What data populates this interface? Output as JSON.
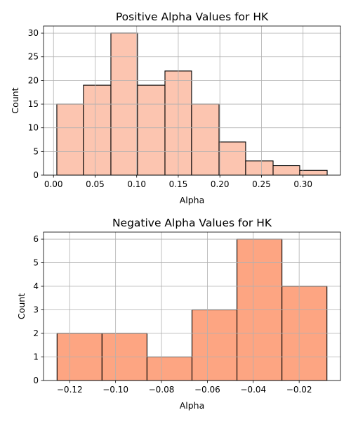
{
  "chart_data": [
    {
      "type": "bar",
      "subtype": "histogram",
      "title": "Positive Alpha Values for HK",
      "xlabel": "Alpha",
      "ylabel": "Count",
      "bin_edges": [
        0.004,
        0.036,
        0.069,
        0.101,
        0.134,
        0.166,
        0.199,
        0.231,
        0.264,
        0.296,
        0.329
      ],
      "values": [
        15,
        19,
        30,
        19,
        22,
        15,
        7,
        3,
        2,
        1
      ],
      "xlim": [
        -0.012,
        0.345
      ],
      "ylim": [
        0,
        31.5
      ],
      "xticks": [
        0.0,
        0.05,
        0.1,
        0.15,
        0.2,
        0.25,
        0.3
      ],
      "xtick_labels": [
        "0.00",
        "0.05",
        "0.10",
        "0.15",
        "0.20",
        "0.25",
        "0.30"
      ],
      "yticks": [
        0,
        5,
        10,
        15,
        20,
        25,
        30
      ],
      "ytick_labels": [
        "0",
        "5",
        "10",
        "15",
        "20",
        "25",
        "30"
      ],
      "bar_color": "#fcc5b0",
      "edge_color": "#000000",
      "grid": true
    },
    {
      "type": "bar",
      "subtype": "histogram",
      "title": "Negative Alpha Values for HK",
      "xlabel": "Alpha",
      "ylabel": "Count",
      "bin_edges": [
        -0.1255,
        -0.1059,
        -0.0863,
        -0.0667,
        -0.0471,
        -0.0275,
        -0.0079
      ],
      "values": [
        2,
        2,
        1,
        3,
        6,
        4
      ],
      "xlim": [
        -0.1314,
        -0.002
      ],
      "ylim": [
        0,
        6.3
      ],
      "xticks": [
        -0.12,
        -0.1,
        -0.08,
        -0.06,
        -0.04,
        -0.02
      ],
      "xtick_labels": [
        "−0.12",
        "−0.10",
        "−0.08",
        "−0.06",
        "−0.04",
        "−0.02"
      ],
      "yticks": [
        0,
        1,
        2,
        3,
        4,
        5,
        6
      ],
      "ytick_labels": [
        "0",
        "1",
        "2",
        "3",
        "4",
        "5",
        "6"
      ],
      "bar_color": "#fda582",
      "edge_color": "#000000",
      "grid": true
    }
  ]
}
